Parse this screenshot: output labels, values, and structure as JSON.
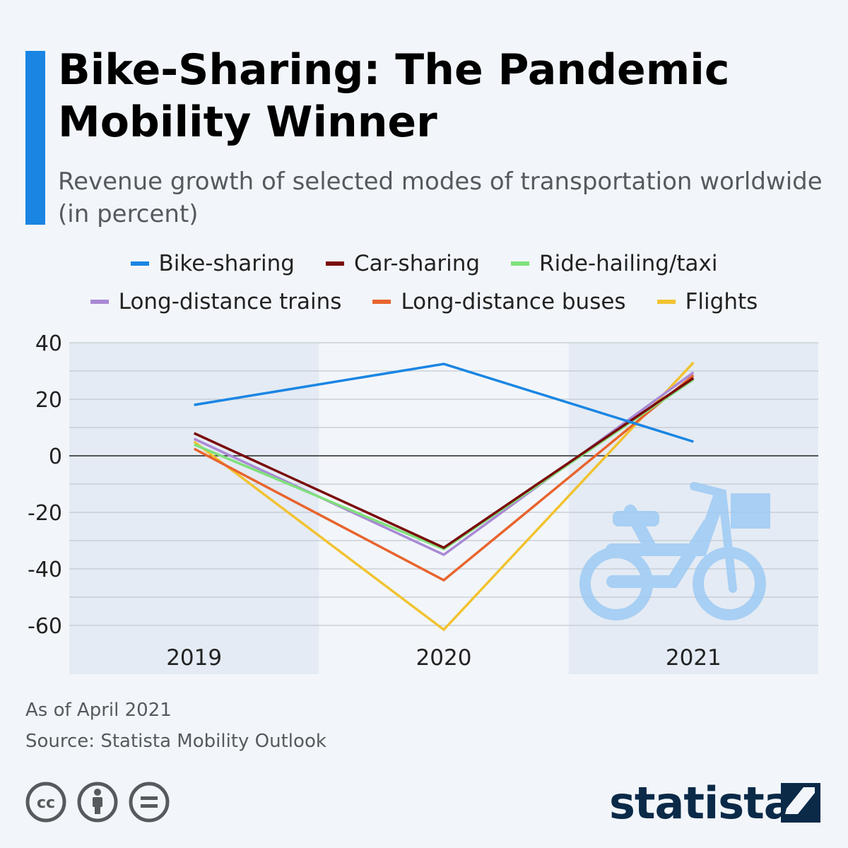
{
  "header": {
    "title": "Bike-Sharing: The Pandemic Mobility Winner",
    "subtitle": "Revenue growth of selected modes of transportation worldwide (in percent)"
  },
  "colors": {
    "accent": "#1a85e3",
    "brand": "#0a2a48",
    "zero_line": "#222222",
    "grid": "#b8bfc6",
    "band": "#e4ebf4"
  },
  "chart_data": {
    "type": "line",
    "title": "",
    "xlabel": "",
    "ylabel": "",
    "categories": [
      "2019",
      "2020",
      "2021"
    ],
    "ylim": [
      -70,
      40
    ],
    "yticks": [
      40,
      20,
      0,
      -20,
      -40,
      -60
    ],
    "grid": true,
    "legend": "top",
    "series": [
      {
        "name": "Bike-sharing",
        "color": "#1a85e3",
        "values": [
          18,
          32.5,
          5
        ]
      },
      {
        "name": "Car-sharing",
        "color": "#7a0a0a",
        "values": [
          8,
          -32.5,
          27.5
        ]
      },
      {
        "name": "Ride-hailing/taxi",
        "color": "#7fe07a",
        "values": [
          4,
          -33,
          27
        ]
      },
      {
        "name": "Long-distance trains",
        "color": "#a989d4",
        "values": [
          6,
          -35,
          29.5
        ]
      },
      {
        "name": "Long-distance buses",
        "color": "#e8642e",
        "values": [
          2.5,
          -44,
          28.5
        ]
      },
      {
        "name": "Flights",
        "color": "#f2c230",
        "values": [
          5,
          -61.5,
          33
        ]
      }
    ]
  },
  "decoration": {
    "icon": "bicycle-icon"
  },
  "footer": {
    "note": "As of April 2021",
    "source": "Source: Statista Mobility Outlook",
    "license_icons": [
      "cc-icon",
      "attribution-icon",
      "no-derivatives-icon"
    ],
    "brand": "statista"
  }
}
